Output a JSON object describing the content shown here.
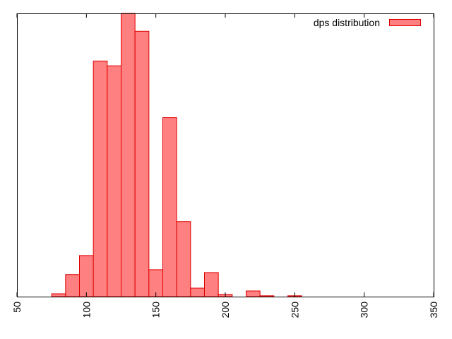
{
  "chart_data": {
    "type": "bar",
    "title": "",
    "xlabel": "",
    "ylabel": "",
    "xlim": [
      50,
      350
    ],
    "ylim": [
      0,
      1
    ],
    "bin_width": 10,
    "x_ticks": [
      50,
      100,
      150,
      200,
      250,
      300,
      350
    ],
    "x_tick_rotation": "vertical",
    "y_ticks": [],
    "grid": false,
    "legend": {
      "position": "top-right",
      "entries": [
        "dps distribution"
      ]
    },
    "series": [
      {
        "name": "dps distribution",
        "color": "#ff8080",
        "edge_color": "#e00000",
        "bins": [
          {
            "x": 80,
            "value": 0.01
          },
          {
            "x": 90,
            "value": 0.078
          },
          {
            "x": 100,
            "value": 0.145
          },
          {
            "x": 110,
            "value": 0.832
          },
          {
            "x": 120,
            "value": 0.815
          },
          {
            "x": 130,
            "value": 1.0
          },
          {
            "x": 140,
            "value": 0.937
          },
          {
            "x": 150,
            "value": 0.095
          },
          {
            "x": 160,
            "value": 0.632
          },
          {
            "x": 170,
            "value": 0.265
          },
          {
            "x": 180,
            "value": 0.03
          },
          {
            "x": 190,
            "value": 0.085
          },
          {
            "x": 200,
            "value": 0.008
          },
          {
            "x": 220,
            "value": 0.02
          },
          {
            "x": 230,
            "value": 0.003
          },
          {
            "x": 250,
            "value": 0.003
          }
        ]
      }
    ]
  }
}
